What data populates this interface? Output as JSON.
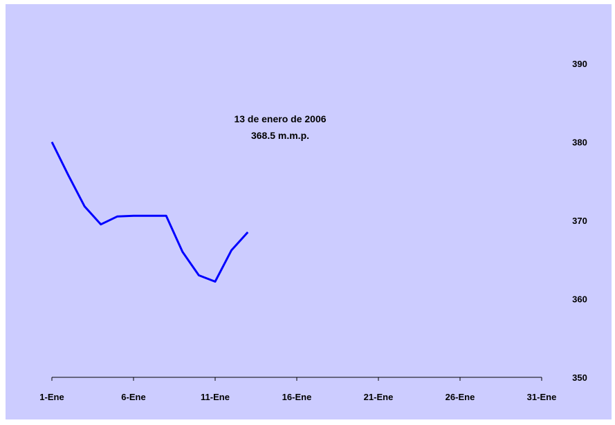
{
  "chart_data": {
    "type": "line",
    "title": "",
    "xlabel": "",
    "ylabel": "",
    "x_tick_labels": [
      "1-Ene",
      "6-Ene",
      "11-Ene",
      "16-Ene",
      "21-Ene",
      "26-Ene",
      "31-Ene"
    ],
    "x_tick_days": [
      1,
      6,
      11,
      16,
      21,
      26,
      31
    ],
    "xlim": [
      1,
      31
    ],
    "y_ticks": [
      350,
      360,
      370,
      380,
      390
    ],
    "ylim": [
      350,
      390
    ],
    "y_axis_side": "right",
    "grid": false,
    "series": [
      {
        "color": "#0000ff",
        "x": [
          1,
          2,
          3,
          4,
          5,
          6,
          7,
          8,
          9,
          10,
          11,
          12,
          13
        ],
        "values": [
          380.0,
          375.8,
          371.8,
          369.5,
          370.5,
          370.6,
          370.6,
          370.6,
          366.0,
          363.0,
          362.2,
          366.2,
          368.5
        ]
      }
    ],
    "annotation": {
      "line1": "13 de enero de 2006",
      "line2": "368.5 m.m.p."
    }
  },
  "colors": {
    "background": "#ccccff",
    "line": "#0000ff",
    "axis": "#000000"
  }
}
